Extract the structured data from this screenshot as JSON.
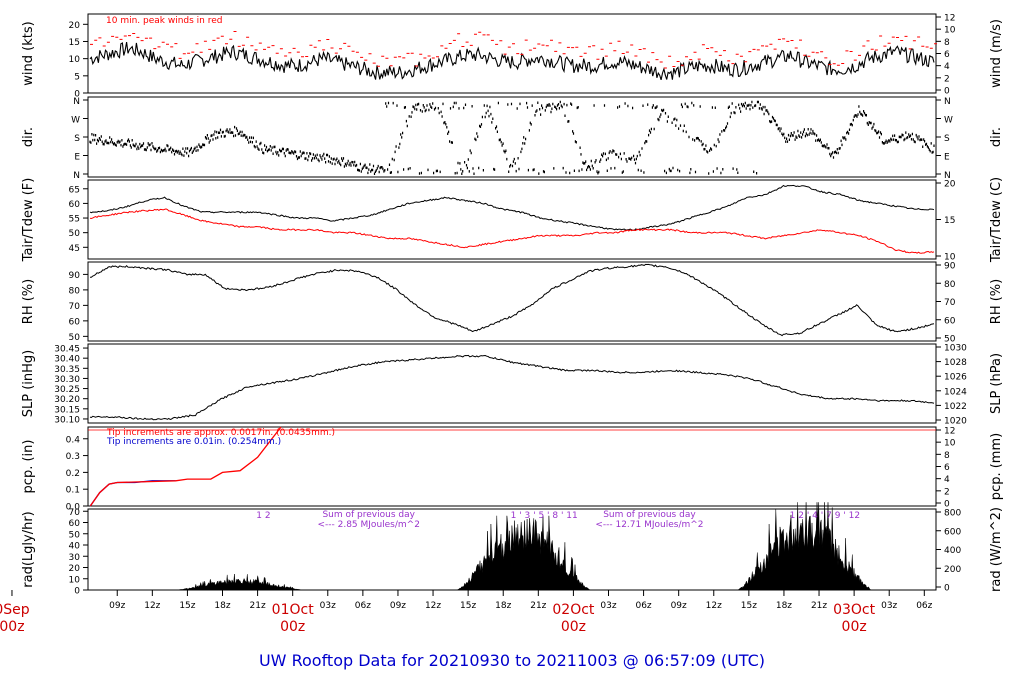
{
  "title": "UW Rooftop Data for 20210930  to  20211003 @ 06:57:09  (UTC)",
  "colors": {
    "black": "#000000",
    "red": "#ff0000",
    "blue": "#0000cc",
    "purple": "#9933cc",
    "title_blue": "#0000cc"
  },
  "x_axis": {
    "hour_ticks": [
      "09z",
      "12z",
      "15z",
      "18z",
      "21z",
      "03z",
      "06z",
      "09z",
      "12z",
      "15z",
      "18z",
      "21z",
      "03z",
      "06z",
      "09z",
      "12z",
      "15z",
      "18z",
      "21z",
      "03z",
      "06z"
    ],
    "hour_tick_hours": [
      9,
      12,
      15,
      18,
      21,
      27,
      30,
      33,
      36,
      39,
      42,
      45,
      51,
      54,
      57,
      60,
      63,
      66,
      69,
      75,
      78
    ],
    "day_labels": [
      {
        "top": "0Sep",
        "bottom": "00z",
        "hour": 0
      },
      {
        "top": "01Oct",
        "bottom": "00z",
        "hour": 24
      },
      {
        "top": "02Oct",
        "bottom": "00z",
        "hour": 48
      },
      {
        "top": "03Oct",
        "bottom": "00z",
        "hour": 72
      }
    ],
    "range_hours": [
      6.5,
      79
    ]
  },
  "chart_data": [
    {
      "type": "line",
      "id": "wind",
      "ylabel": "wind (kts)",
      "ylabel_right": "wind (m/s)",
      "yticks": [
        0,
        5,
        10,
        15,
        20
      ],
      "yticks_right": [
        0,
        2,
        4,
        6,
        8,
        10,
        12
      ],
      "ylim": [
        0,
        23
      ],
      "annotation": "10 min. peak winds in red",
      "series": [
        {
          "color": "#000000",
          "values": [
            10,
            11,
            12,
            13,
            12,
            10,
            9,
            8,
            9,
            10,
            11,
            12,
            11,
            10,
            9,
            8,
            8,
            9,
            10,
            9,
            8,
            7,
            6,
            6,
            6,
            7,
            8,
            9,
            10,
            11,
            11,
            10,
            9,
            9,
            10,
            10,
            9,
            8,
            8,
            8,
            9,
            9,
            8,
            7,
            6,
            6,
            7,
            8,
            8,
            7,
            7,
            8,
            9,
            10,
            11,
            9,
            8,
            7,
            7,
            8,
            10,
            11,
            12,
            11,
            10,
            9
          ]
        },
        {
          "color": "#ff0000",
          "values": [
            14,
            15,
            17,
            18,
            17,
            14,
            13,
            12,
            13,
            14,
            15,
            16,
            15,
            14,
            13,
            12,
            12,
            13,
            14,
            13,
            12,
            10,
            9,
            9,
            9,
            10,
            12,
            13,
            15,
            16,
            16,
            14,
            13,
            13,
            14,
            14,
            13,
            12,
            12,
            12,
            13,
            13,
            12,
            10,
            9,
            9,
            10,
            12,
            12,
            10,
            10,
            12,
            13,
            14,
            15,
            13,
            12,
            10,
            10,
            12,
            14,
            15,
            17,
            15,
            14,
            13
          ]
        }
      ]
    },
    {
      "type": "scatter",
      "id": "dir",
      "ylabel": "dir.",
      "ylabel_right": "dir.",
      "yticks": [
        "N",
        "E",
        "S",
        "W",
        "N"
      ],
      "note": "wind direction dots, mostly S-SW early, variable mid-period"
    },
    {
      "type": "line",
      "id": "temp",
      "ylabel": "Tair/Tdew (F)",
      "ylabel_right": "Tair/Tdew (C)",
      "yticks": [
        45,
        50,
        55,
        60,
        65
      ],
      "yticks_right": [
        10,
        15,
        20
      ],
      "ylim": [
        41,
        68
      ],
      "series": [
        {
          "name": "Tair",
          "color": "#000000",
          "values": [
            57,
            57.5,
            59,
            61,
            62,
            59,
            57,
            57,
            57,
            57,
            56,
            55,
            55,
            54,
            55,
            56,
            58,
            60,
            61,
            62,
            61,
            60,
            58,
            57,
            55,
            54,
            53,
            52,
            51,
            51,
            52,
            53,
            55,
            57,
            59,
            62,
            63,
            66,
            66,
            64,
            63,
            61,
            60,
            59,
            58,
            58
          ]
        },
        {
          "name": "Tdew",
          "color": "#ff0000",
          "values": [
            55,
            56,
            57,
            57.5,
            58,
            56,
            54,
            53,
            52,
            52,
            51,
            51,
            51,
            50,
            50,
            49,
            48,
            48,
            47,
            46,
            45,
            46,
            47,
            48,
            49,
            49,
            49,
            50,
            50,
            51,
            51,
            51,
            50,
            50,
            50,
            49,
            48,
            49,
            50,
            51,
            50,
            49,
            47,
            44,
            43,
            43.5
          ]
        }
      ]
    },
    {
      "type": "line",
      "id": "rh",
      "ylabel": "RH (%)",
      "ylabel_right": "RH (%)",
      "yticks": [
        50,
        60,
        70,
        80,
        90
      ],
      "yticks_right": [
        50,
        60,
        70,
        80,
        90
      ],
      "ylim": [
        47,
        98
      ],
      "series": [
        {
          "color": "#000000",
          "values": [
            88,
            95,
            95,
            94,
            93,
            90,
            90,
            81,
            80,
            81,
            84,
            88,
            91,
            93,
            92,
            88,
            80,
            70,
            62,
            58,
            53,
            58,
            63,
            70,
            80,
            86,
            92,
            94,
            95,
            96,
            95,
            91,
            84,
            76,
            67,
            58,
            51,
            52,
            58,
            64,
            70,
            57,
            53,
            55,
            58
          ]
        }
      ]
    },
    {
      "type": "line",
      "id": "slp",
      "ylabel": "SLP (inHg)",
      "ylabel_right": "SLP (hPa)",
      "yticks": [
        30.1,
        30.15,
        30.2,
        30.25,
        30.3,
        30.35,
        30.4,
        30.45
      ],
      "ytick_labels": [
        "30.10",
        "30.15",
        "30.20",
        "30.25",
        "30.30",
        "30.35",
        "30.40",
        "30.45"
      ],
      "yticks_right": [
        1020,
        1022,
        1024,
        1026,
        1028,
        1030
      ],
      "ylim": [
        30.08,
        30.47
      ],
      "series": [
        {
          "color": "#000000",
          "values": [
            30.11,
            30.11,
            30.1,
            30.1,
            30.12,
            30.2,
            30.26,
            30.28,
            30.3,
            30.33,
            30.36,
            30.38,
            30.39,
            30.4,
            30.41,
            30.41,
            30.38,
            30.36,
            30.34,
            30.34,
            30.33,
            30.33,
            30.34,
            30.33,
            30.32,
            30.3,
            30.26,
            30.22,
            30.2,
            30.2,
            30.19,
            30.19,
            30.18
          ]
        }
      ]
    },
    {
      "type": "line",
      "id": "pcp",
      "ylabel": "pcp. (in)",
      "ylabel_right": "pcp. (mm)",
      "yticks": [
        0,
        0.1,
        0.2,
        0.3,
        0.4
      ],
      "ytick_labels": [
        "0.0",
        "0.1",
        "0.2",
        "0.3",
        "0.4"
      ],
      "yticks_right": [
        0,
        2,
        4,
        6,
        8,
        10,
        12
      ],
      "ylim": [
        0,
        0.47
      ],
      "annotation_red": "Tip increments are approx. 0.0017in. (0.0435mm.)",
      "annotation_blue": "Tip increments are 0.01in. (0.254mm.)",
      "series": [
        {
          "name": "blue",
          "color": "#0000cc",
          "x": [
            6.7,
            7.5,
            8.3,
            9,
            10.5,
            12,
            14
          ],
          "values": [
            0,
            0.08,
            0.13,
            0.14,
            0.14,
            0.15,
            0.15
          ]
        },
        {
          "name": "red",
          "color": "#ff0000",
          "x": [
            6.7,
            7.5,
            8.3,
            9,
            14,
            15,
            17,
            18,
            19.5,
            21,
            23
          ],
          "values": [
            0,
            0.08,
            0.13,
            0.14,
            0.15,
            0.16,
            0.16,
            0.2,
            0.21,
            0.29,
            0.47
          ]
        }
      ]
    },
    {
      "type": "area",
      "id": "rad",
      "ylabel": "rad(Lgly/hr)",
      "ylabel_right": "rad (W/m^2)",
      "yticks": [
        0,
        10,
        20,
        30,
        40,
        50,
        60,
        70
      ],
      "yticks_right": [
        0,
        200,
        400,
        600,
        800
      ],
      "ylim": [
        0,
        72
      ],
      "annotations": [
        {
          "text": "1   2",
          "hour": 21.5
        },
        {
          "text": "Sum of previous day",
          "hour": 30.5
        },
        {
          "text": "<--- 2.85 MJoules/m^2",
          "hour": 30.5
        },
        {
          "text": "1  '  3  '  5  '  8  '  11",
          "hour": 45.5
        },
        {
          "text": "Sum of previous day",
          "hour": 54.5
        },
        {
          "text": "<--- 12.71 MJoules/m^2",
          "hour": 54.5
        },
        {
          "text": "1   2  '  4  '  7  9  '   12",
          "hour": 69.5
        }
      ],
      "days": [
        {
          "start": 14,
          "end": 25,
          "peak": 30,
          "level": 9
        },
        {
          "start": 38,
          "end": 49.5,
          "peak": 66,
          "level": 58
        },
        {
          "start": 62,
          "end": 73.5,
          "peak": 78,
          "level": 63
        }
      ]
    }
  ]
}
